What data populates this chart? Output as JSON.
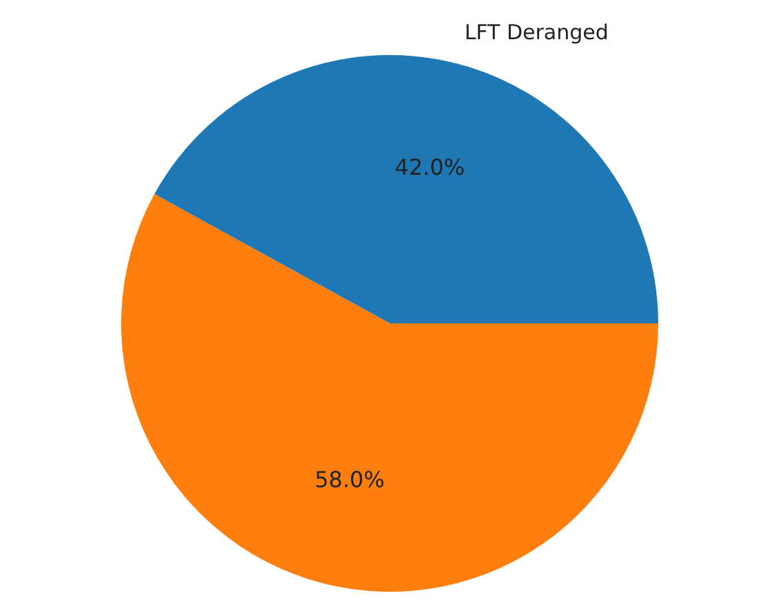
{
  "chart_data": {
    "type": "pie",
    "categories": [
      "LFT Deranged",
      null
    ],
    "values": [
      42,
      58
    ],
    "colors": [
      "#1f77b4",
      "#ff7f0e"
    ],
    "value_labels": [
      "42.0%",
      "58.0%"
    ],
    "legend": false
  }
}
